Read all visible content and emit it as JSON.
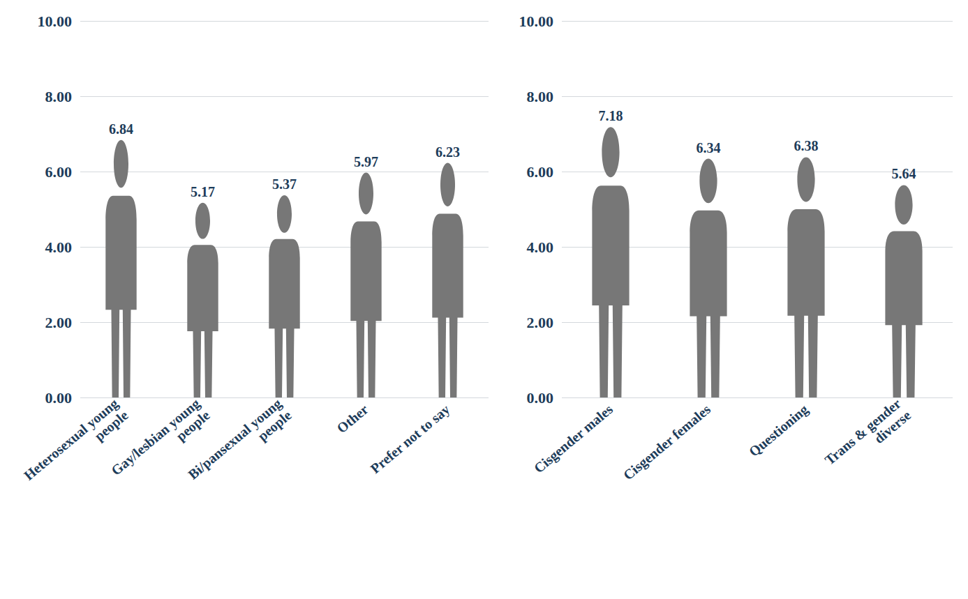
{
  "chart_data": [
    {
      "type": "bar",
      "categories": [
        "Heterosexual young people",
        "Gay/lesbian young people",
        "Bi/pansexual young people",
        "Other",
        "Prefer not to say"
      ],
      "values": [
        6.84,
        5.17,
        5.37,
        5.97,
        6.23
      ],
      "color": "#777777",
      "marker": "person",
      "ylim": [
        0,
        10
      ],
      "yticks": [
        {
          "value": 0,
          "label": "0.00"
        },
        {
          "value": 2,
          "label": "2.00"
        },
        {
          "value": 4,
          "label": "4.00"
        },
        {
          "value": 6,
          "label": "6.00"
        },
        {
          "value": 8,
          "label": "8.00"
        },
        {
          "value": 10,
          "label": "10.00"
        }
      ],
      "grid": true,
      "data_labels": true
    },
    {
      "type": "bar",
      "categories": [
        "Cisgender males",
        "Cisgender females",
        "Questioning",
        "Trans & gender diverse"
      ],
      "values": [
        7.18,
        6.34,
        6.38,
        5.64
      ],
      "color": "#777777",
      "marker": "person",
      "ylim": [
        0,
        10
      ],
      "yticks": [
        {
          "value": 0,
          "label": "0.00"
        },
        {
          "value": 2,
          "label": "2.00"
        },
        {
          "value": 4,
          "label": "4.00"
        },
        {
          "value": 6,
          "label": "6.00"
        },
        {
          "value": 8,
          "label": "8.00"
        },
        {
          "value": 10,
          "label": "10.00"
        }
      ],
      "grid": true,
      "data_labels": true
    }
  ]
}
